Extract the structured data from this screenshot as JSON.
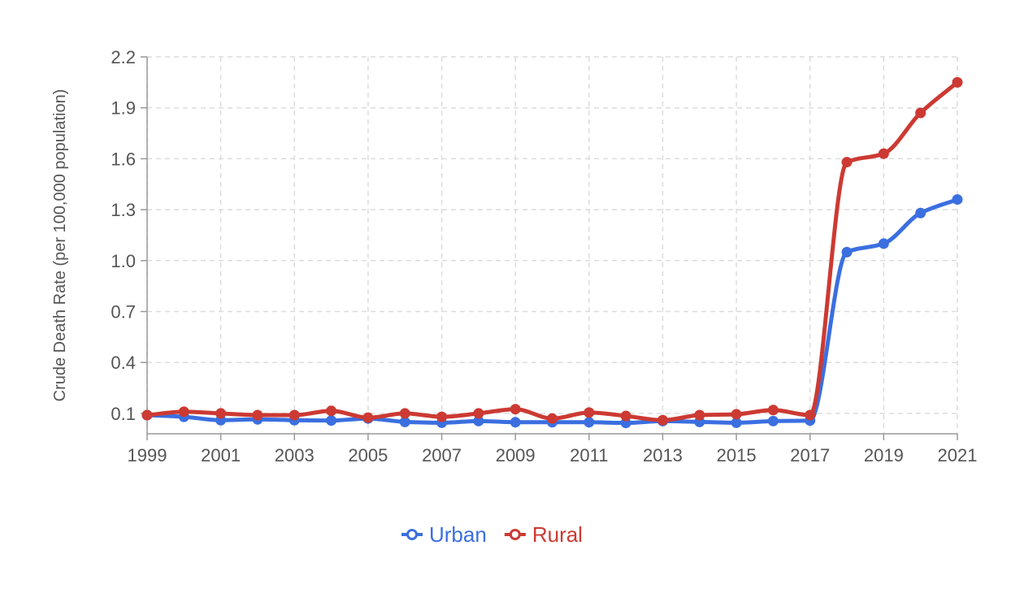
{
  "chart_data": {
    "type": "line",
    "title": "",
    "xlabel": "",
    "ylabel": "Crude Death Rate (per 100,000 population)",
    "x": [
      1999,
      2000,
      2001,
      2002,
      2003,
      2004,
      2005,
      2006,
      2007,
      2008,
      2009,
      2010,
      2011,
      2012,
      2013,
      2014,
      2015,
      2016,
      2017,
      2018,
      2019,
      2020,
      2021
    ],
    "x_ticks": [
      "1999",
      "2001",
      "2003",
      "2005",
      "2007",
      "2009",
      "2011",
      "2013",
      "2015",
      "2017",
      "2019",
      "2021"
    ],
    "xlim": [
      1999,
      2021
    ],
    "y_ticks": [
      "0.1",
      "0.4",
      "0.7",
      "1.0",
      "1.3",
      "1.6",
      "1.9",
      "2.2"
    ],
    "ylim": [
      -0.02,
      2.2
    ],
    "grid": true,
    "legend_position": "bottom-center",
    "series": [
      {
        "name": "Urban",
        "color": "#3b6fe0",
        "values": [
          0.09,
          0.08,
          0.06,
          0.065,
          0.06,
          0.058,
          0.07,
          0.05,
          0.045,
          0.055,
          0.048,
          0.048,
          0.048,
          0.044,
          0.055,
          0.05,
          0.045,
          0.055,
          0.058,
          1.05,
          1.1,
          1.28,
          1.36
        ]
      },
      {
        "name": "Rural",
        "color": "#cc3a33",
        "values": [
          0.09,
          0.11,
          0.1,
          0.09,
          0.09,
          0.115,
          0.075,
          0.1,
          0.08,
          0.1,
          0.125,
          0.07,
          0.105,
          0.085,
          0.06,
          0.09,
          0.095,
          0.12,
          0.09,
          1.58,
          1.63,
          1.87,
          2.05
        ]
      }
    ]
  }
}
